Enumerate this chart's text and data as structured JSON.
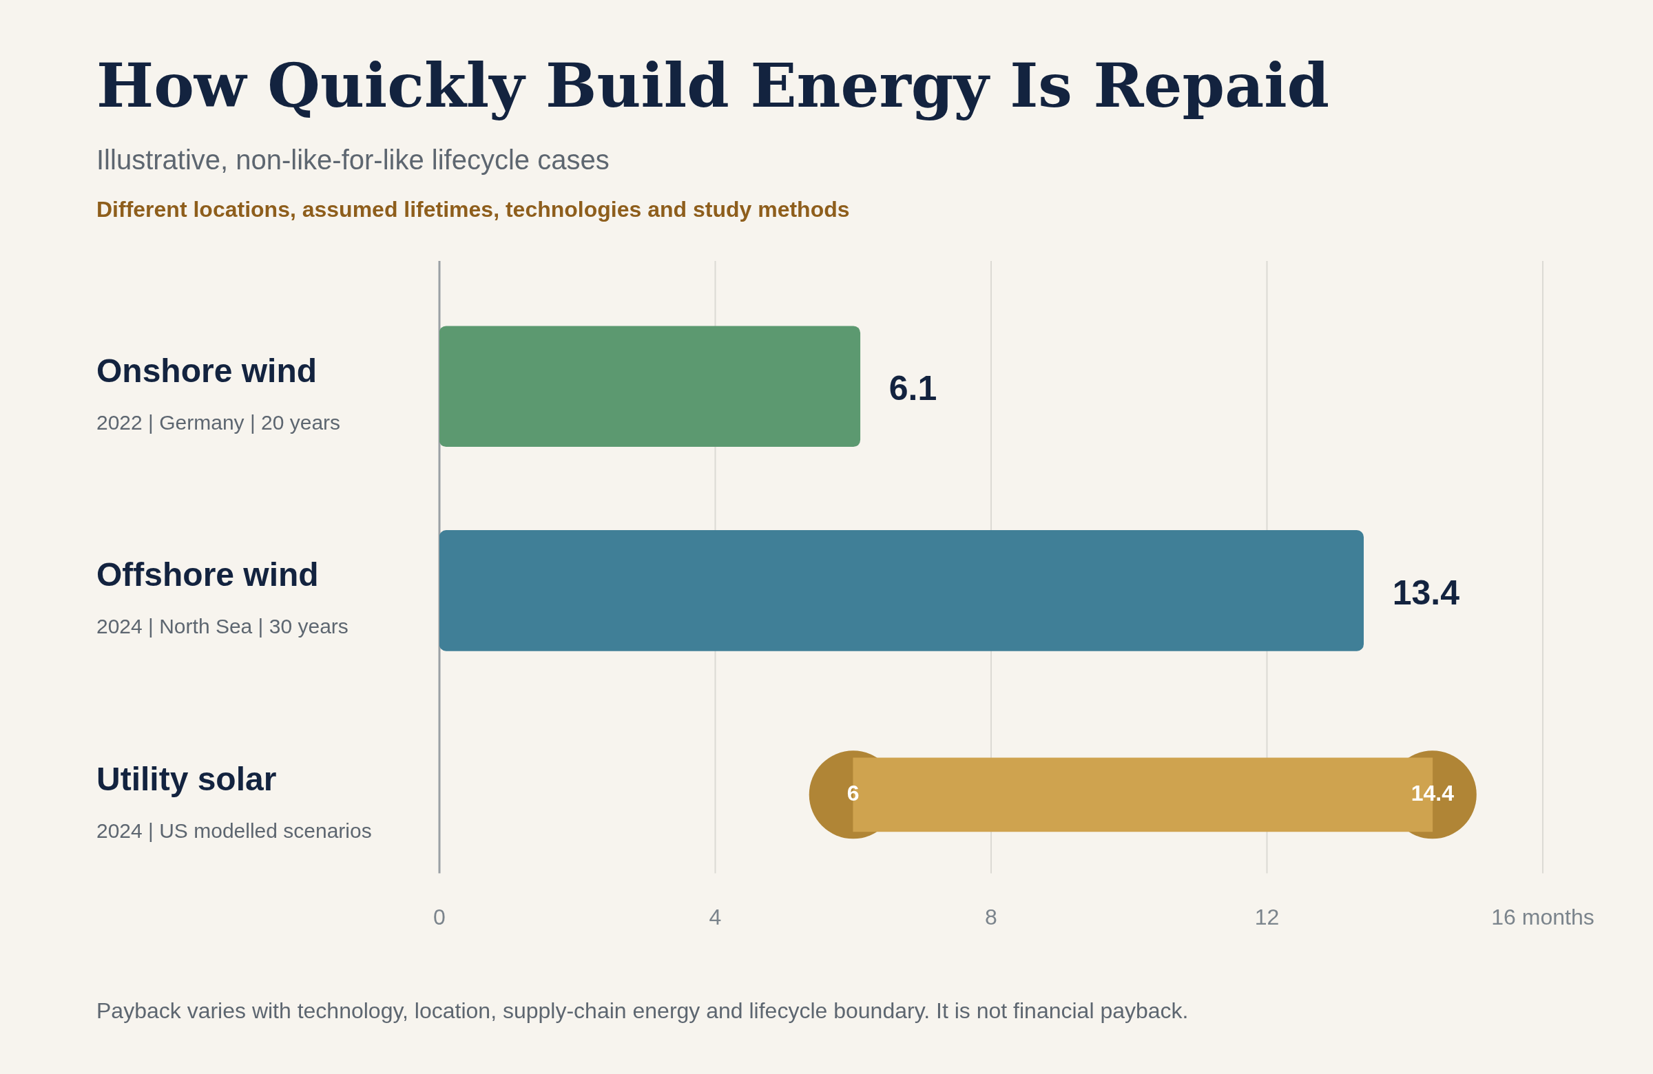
{
  "chart_data": {
    "type": "bar",
    "orientation": "horizontal",
    "title": "How Quickly Build Energy Is Repaid",
    "subtitle": "Illustrative, non-like-for-like lifecycle cases",
    "categories": [
      "Onshore wind",
      "Offshore wind",
      "Utility solar"
    ],
    "series": [
      {
        "type": "bar",
        "colors": [
          "#5c9970",
          "#407f97",
          "#cfa34f"
        ],
        "values": [
          6.1,
          13.4,
          8.4
        ],
        "base": [
          0,
          0,
          6
        ],
        "value_labels": [
          "6.1",
          "13.4",
          null
        ]
      },
      {
        "type": "scatter",
        "marker": "circle",
        "color": "#b08536",
        "x": [
          "Utility solar",
          "Utility solar"
        ],
        "values": [
          6,
          14.4
        ],
        "value_labels": [
          "6",
          "14.4"
        ]
      }
    ],
    "xlim": [
      0,
      16
    ],
    "xticks": [
      0,
      4,
      8,
      12,
      {
        "value": 16,
        "label": "16 months"
      }
    ],
    "grid": "x",
    "legend": false,
    "annotations": [
      "Different locations, assumed lifetimes, technologies and study methods",
      "2022 | Germany | 20 years",
      "2024 | North Sea | 30 years",
      "2024 | US modelled scenarios",
      "Payback varies with technology, location, supply-chain energy and lifecycle boundary. It is not financial payback."
    ]
  }
}
